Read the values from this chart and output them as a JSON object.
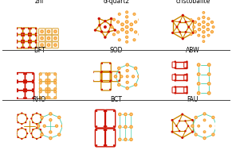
{
  "panels": [
    {
      "label": "zni",
      "row": 0,
      "col": 0
    },
    {
      "label": "α-quartz",
      "row": 0,
      "col": 1
    },
    {
      "label": "cristobalite",
      "row": 0,
      "col": 2
    },
    {
      "label": "DFT",
      "row": 1,
      "col": 0
    },
    {
      "label": "SOD",
      "row": 1,
      "col": 1
    },
    {
      "label": "ABW",
      "row": 1,
      "col": 2
    },
    {
      "label": "RHO",
      "row": 2,
      "col": 0
    },
    {
      "label": "BCT",
      "row": 2,
      "col": 1
    },
    {
      "label": "FAU",
      "row": 2,
      "col": 2
    }
  ],
  "bg_color": "#ffffff",
  "label_fontsize": 5.5,
  "orange": "#f5a030",
  "red": "#cc1100",
  "dark": "#111100",
  "cyan": "#44ccaa",
  "gold": "#cc8800",
  "black": "#000000"
}
